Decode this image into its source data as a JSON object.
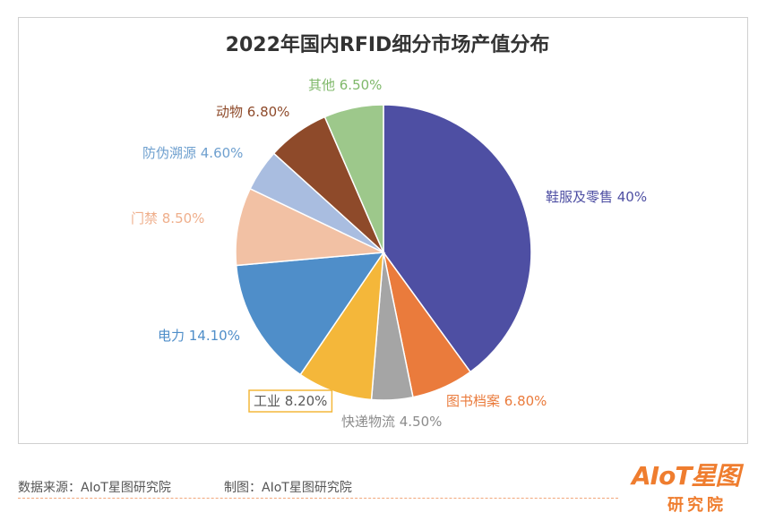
{
  "chart_data": {
    "type": "pie",
    "title": "2022年国内RFID细分市场产值分布",
    "slices": [
      {
        "name": "鞋服及零售",
        "value": 40,
        "label": "鞋服及零售 40%",
        "color": "#4e4fa3",
        "label_color": "#4e4fa3"
      },
      {
        "name": "图书档案",
        "value": 6.8,
        "label": "图书档案 6.80%",
        "color": "#ea7b3c",
        "label_color": "#ea7b3c"
      },
      {
        "name": "快递物流",
        "value": 4.5,
        "label": "快递物流 4.50%",
        "color": "#a5a5a5",
        "label_color": "#8c8c8c"
      },
      {
        "name": "工业",
        "value": 8.2,
        "label": "工业 8.20%",
        "color": "#f4b73a",
        "label_color": "#5a5a5a",
        "boxed": true,
        "box_color": "#f4b73a"
      },
      {
        "name": "电力",
        "value": 14.1,
        "label": "电力 14.10%",
        "color": "#4f8ec9",
        "label_color": "#4f8ec9"
      },
      {
        "name": "门禁",
        "value": 8.5,
        "label": "门禁 8.50%",
        "color": "#f2c1a4",
        "label_color": "#efaf8c"
      },
      {
        "name": "防伪溯源",
        "value": 4.6,
        "label": "防伪溯源 4.60%",
        "color": "#a9bde0",
        "label_color": "#6fa0cf"
      },
      {
        "name": "动物",
        "value": 6.8,
        "label": "动物 6.80%",
        "color": "#8e4a2a",
        "label_color": "#8e4a2a"
      },
      {
        "name": "其他",
        "value": 6.5,
        "label": "其他 6.50%",
        "color": "#9dc88b",
        "label_color": "#7fb86a"
      }
    ]
  },
  "footer": {
    "source": "数据来源：AIoT星图研究院",
    "maker": "制图：AIoT星图研究院"
  },
  "logo": {
    "top": "AIoT星图",
    "bottom": "研究院"
  }
}
